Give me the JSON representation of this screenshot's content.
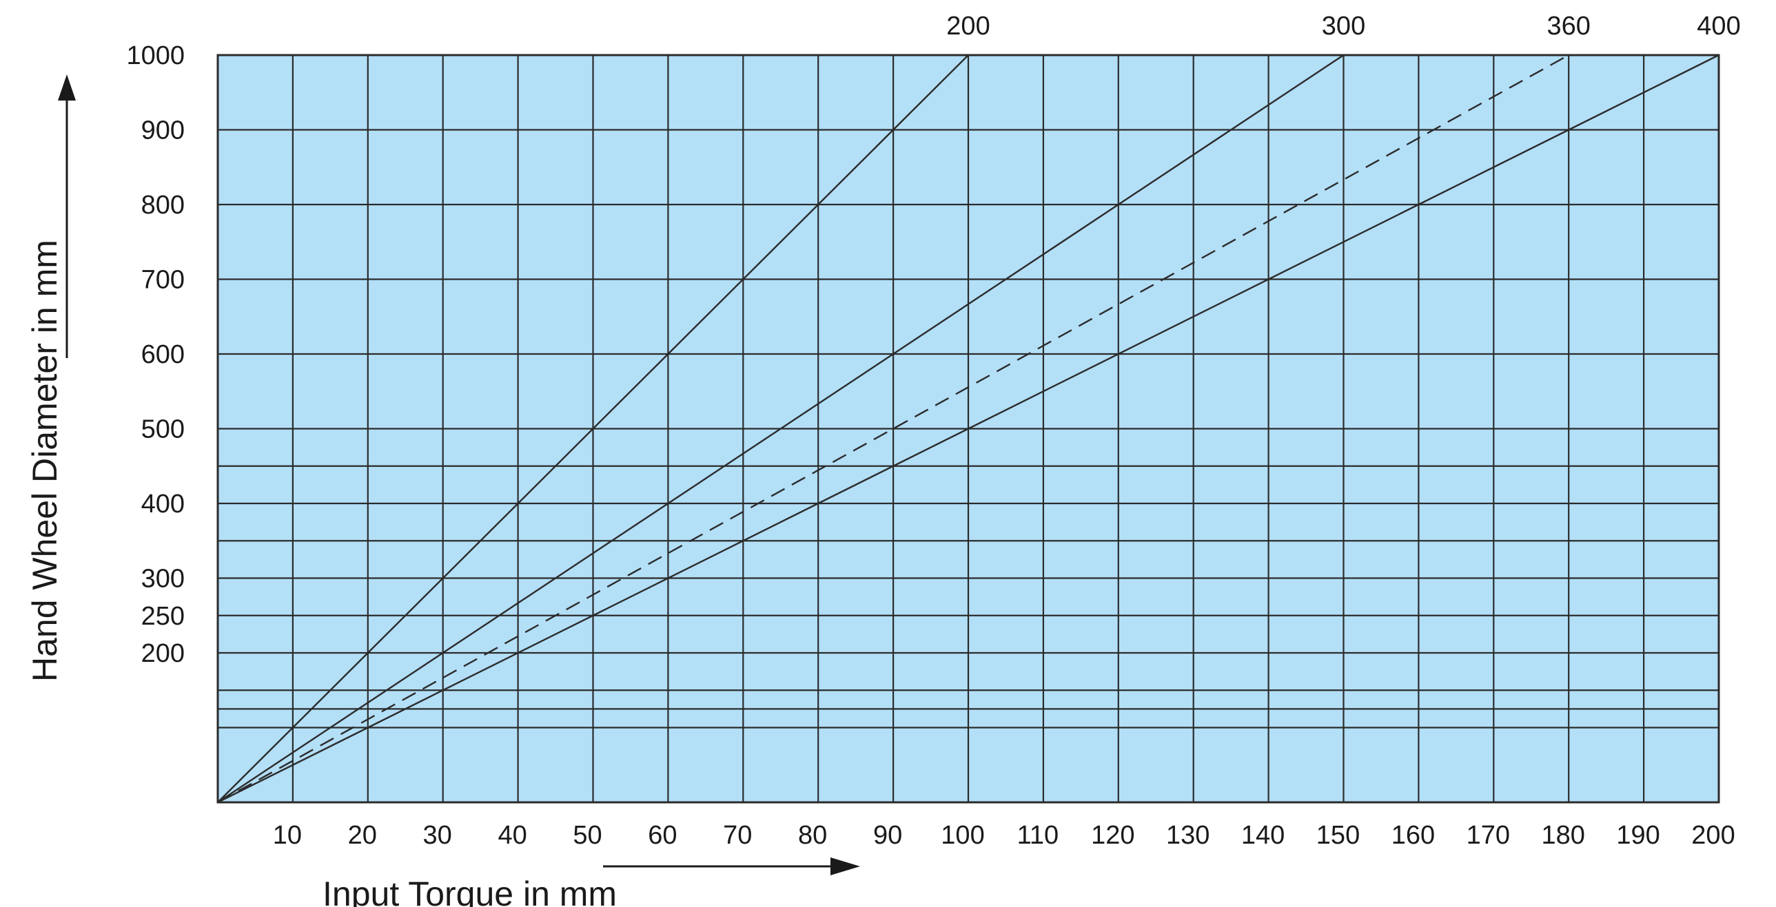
{
  "chart_data": {
    "type": "line",
    "title": "",
    "xlabel": "Input Torque in mm",
    "ylabel": "Hand Wheel Diameter in mm",
    "xlim": [
      0,
      200
    ],
    "ylim": [
      0,
      1000
    ],
    "x_ticks": [
      10,
      20,
      30,
      40,
      50,
      60,
      70,
      80,
      90,
      100,
      110,
      120,
      130,
      140,
      150,
      160,
      170,
      180,
      190,
      200
    ],
    "y_tick_labels": [
      {
        "value": 1000,
        "label": "1000"
      },
      {
        "value": 900,
        "label": "900"
      },
      {
        "value": 800,
        "label": "800"
      },
      {
        "value": 700,
        "label": "700"
      },
      {
        "value": 600,
        "label": "600"
      },
      {
        "value": 500,
        "label": "500"
      },
      {
        "value": 400,
        "label": "400"
      },
      {
        "value": 300,
        "label": "300"
      },
      {
        "value": 250,
        "label": "250"
      },
      {
        "value": 200,
        "label": "200"
      }
    ],
    "y_gridlines": [
      100,
      125,
      150,
      200,
      250,
      300,
      350,
      400,
      450,
      500,
      600,
      700,
      800,
      900,
      1000
    ],
    "grid": true,
    "background_color": "#b3dff7",
    "grid_color": "#2b2b2b",
    "line_color": "#2b2b2b",
    "series": [
      {
        "name": "200",
        "dashed": false,
        "x": [
          0,
          100
        ],
        "y": [
          0,
          1000
        ]
      },
      {
        "name": "300",
        "dashed": false,
        "x": [
          0,
          150
        ],
        "y": [
          0,
          1000
        ]
      },
      {
        "name": "360",
        "dashed": true,
        "x": [
          0,
          180
        ],
        "y": [
          0,
          1000
        ]
      },
      {
        "name": "400",
        "dashed": false,
        "x": [
          0,
          200
        ],
        "y": [
          0,
          1000
        ]
      }
    ]
  }
}
